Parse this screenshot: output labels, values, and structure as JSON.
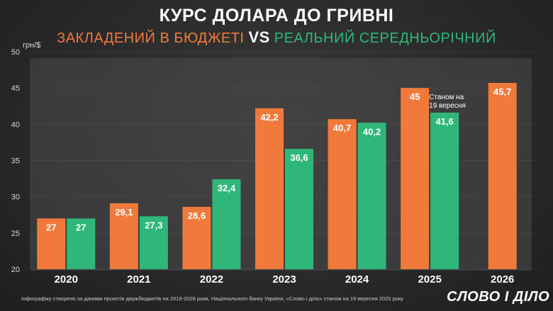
{
  "title": "КУРС ДОЛАРА ДО ГРИВНІ",
  "subtitle": {
    "left": "ЗАКЛАДЕНИЙ В БЮДЖЕТІ",
    "vs": "VS",
    "right": "РЕАЛЬНИЙ СЕРЕДНЬОРІЧНИЙ"
  },
  "colors": {
    "budget": "#f07a3c",
    "actual": "#2fb77a"
  },
  "note": {
    "line1": "Станом на",
    "line2": "19 вересня"
  },
  "footer": "Інфографіку створено за даними проєктів держбюджетів на 2019-2026 роки, Національного банку України, «Слово і діло» станом на 19 вересня 2025 року",
  "logo": "СЛОВО І ДІЛО",
  "chart_data": {
    "type": "bar",
    "ylabel": "грн/$",
    "ylim": [
      20,
      50
    ],
    "yticks": [
      20,
      25,
      30,
      35,
      40,
      45,
      50
    ],
    "categories": [
      "2020",
      "2021",
      "2022",
      "2023",
      "2024",
      "2025",
      "2026"
    ],
    "series": [
      {
        "key": "budget",
        "values": [
          27,
          29.1,
          28.6,
          42.2,
          40.7,
          45,
          45.7
        ],
        "labels": [
          "27",
          "29,1",
          "28,6",
          "42,2",
          "40,7",
          "45",
          "45,7"
        ]
      },
      {
        "key": "actual",
        "values": [
          27,
          27.3,
          32.4,
          36.6,
          40.2,
          41.6,
          null
        ],
        "labels": [
          "27",
          "27,3",
          "32,4",
          "36,6",
          "40,2",
          "41,6",
          null
        ]
      }
    ]
  }
}
